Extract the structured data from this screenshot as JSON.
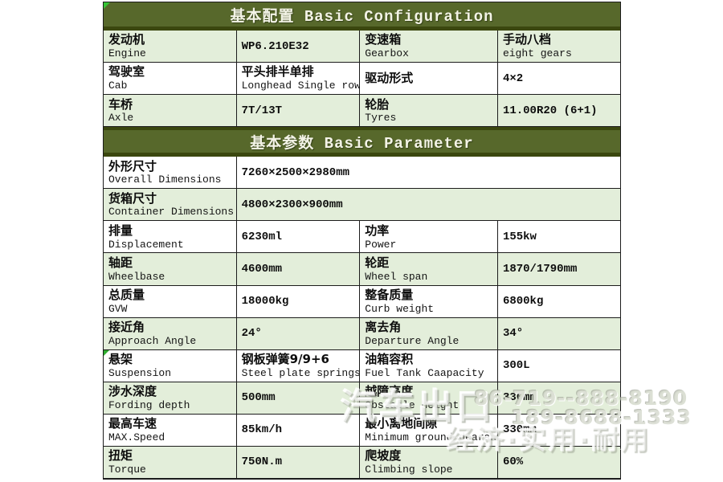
{
  "table": {
    "sections": [
      {
        "title": "基本配置 Basic Configuration",
        "rows": [
          [
            {
              "zh": "发动机",
              "en": "Engine"
            },
            {
              "zh": "WP6.210E32",
              "value": true
            },
            {
              "zh": "变速箱",
              "en": "Gearbox"
            },
            {
              "zh": "手动八档",
              "en": "eight gears"
            }
          ],
          [
            {
              "zh": "驾驶室",
              "en": "Cab"
            },
            {
              "zh": "平头排半单排",
              "en": "Longhead Single row"
            },
            {
              "zh": "驱动形式"
            },
            {
              "zh": "4×2",
              "value": true
            }
          ],
          [
            {
              "zh": "车桥",
              "en": "Axle"
            },
            {
              "zh": "7T/13T",
              "value": true
            },
            {
              "zh": "轮胎",
              "en": "Tyres"
            },
            {
              "zh": "11.00R20 (6+1)",
              "value": true
            }
          ]
        ]
      },
      {
        "title": "基本参数 Basic Parameter",
        "rows": [
          [
            {
              "zh": "外形尺寸",
              "en": "Overall Dimensions"
            },
            {
              "zh": "7260×2500×2980mm",
              "value": true,
              "span": 3
            }
          ],
          [
            {
              "zh": "货箱尺寸",
              "en": "Container Dimensions"
            },
            {
              "zh": "4800×2300×900mm",
              "value": true,
              "span": 3
            }
          ],
          [
            {
              "zh": "排量",
              "en": "Displacement"
            },
            {
              "zh": "6230ml",
              "value": true
            },
            {
              "zh": "功率",
              "en": "Power"
            },
            {
              "zh": "155kw",
              "value": true
            }
          ],
          [
            {
              "zh": "轴距",
              "en": "Wheelbase"
            },
            {
              "zh": "4600mm",
              "value": true
            },
            {
              "zh": "轮距",
              "en": "Wheel span"
            },
            {
              "zh": "1870/1790mm",
              "value": true
            }
          ],
          [
            {
              "zh": "总质量",
              "en": "GVW"
            },
            {
              "zh": "18000kg",
              "value": true
            },
            {
              "zh": "整备质量",
              "en": "Curb weight"
            },
            {
              "zh": "6800kg",
              "value": true
            }
          ],
          [
            {
              "zh": "接近角",
              "en": "Approach Angle"
            },
            {
              "zh": "24°",
              "value": true
            },
            {
              "zh": "离去角",
              "en": "Departure Angle"
            },
            {
              "zh": "34°",
              "value": true
            }
          ],
          [
            {
              "zh": "悬架",
              "en": "Suspension",
              "marker": true
            },
            {
              "zh": "钢板弹簧9/9+6",
              "en": "Steel plate springs"
            },
            {
              "zh": "油箱容积",
              "en": "Fuel Tank Caapacity"
            },
            {
              "zh": "300L",
              "value": true
            }
          ],
          [
            {
              "zh": "涉水深度",
              "en": "Fording depth"
            },
            {
              "zh": "500mm",
              "value": true
            },
            {
              "zh": "越障高度",
              "en": "Obstacle height"
            },
            {
              "zh": "330mm",
              "value": true
            }
          ],
          [
            {
              "zh": "最高车速",
              "en": "MAX.Speed"
            },
            {
              "zh": "85km/h",
              "value": true
            },
            {
              "zh": "最小离地间隙",
              "en": "Minimum ground dearance"
            },
            {
              "zh": "330mm",
              "value": true
            }
          ],
          [
            {
              "zh": "扭矩",
              "en": "Torque"
            },
            {
              "zh": "750N.m",
              "value": true
            },
            {
              "zh": "爬坡度",
              "en": "Climbing slope"
            },
            {
              "zh": "60%",
              "value": true
            }
          ]
        ]
      }
    ]
  },
  "watermark": {
    "brand": "汽车出口",
    "phone1": "86-719--888-8190",
    "phone2": "189-8688-1333",
    "slogan": "经济·实用·耐用"
  },
  "colors": {
    "header_bg": "#57682b",
    "header_band": "#3b470f",
    "row_green": "#e3eeda",
    "row_white": "#ffffff",
    "border": "#1c1c1c",
    "corner_flag": "#35c435"
  }
}
